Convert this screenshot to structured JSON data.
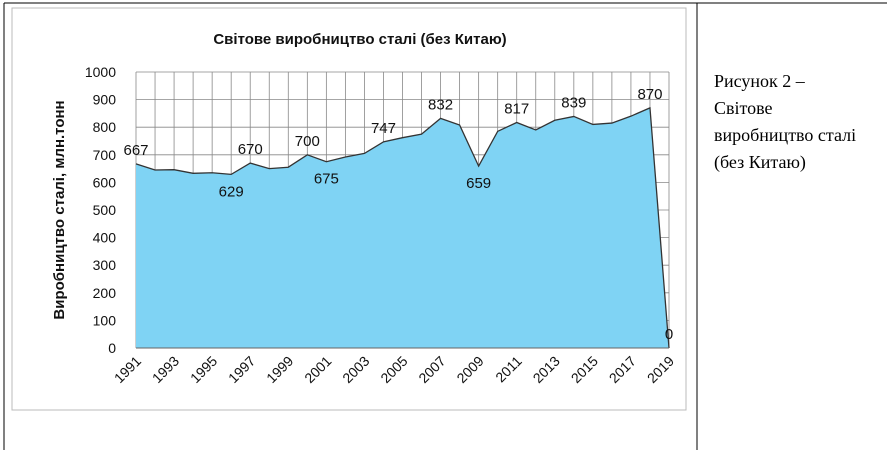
{
  "chart_data": {
    "type": "area",
    "title": "Світове виробництво сталі (без Китаю)",
    "y_label": "Виробництво сталі, млн.тонн",
    "categories": [
      "1991",
      null,
      "1993",
      null,
      "1995",
      null,
      "1997",
      null,
      "1999",
      null,
      "2001",
      null,
      "2003",
      null,
      "2005",
      null,
      "2007",
      null,
      "2009",
      null,
      "2011",
      null,
      "2013",
      null,
      "2015",
      null,
      "2017",
      null,
      "2019"
    ],
    "values": [
      667,
      645,
      646,
      633,
      635,
      629,
      670,
      650,
      655,
      700,
      675,
      692,
      705,
      747,
      762,
      775,
      832,
      808,
      659,
      785,
      817,
      790,
      825,
      839,
      810,
      815,
      840,
      870,
      0
    ],
    "value_labels": [
      "667",
      null,
      null,
      null,
      null,
      "629",
      "670",
      null,
      null,
      "700",
      "675",
      null,
      null,
      "747",
      null,
      null,
      "832",
      null,
      "659",
      null,
      "817",
      null,
      null,
      "839",
      null,
      null,
      null,
      "870",
      "0"
    ],
    "color": "#7fd3f4",
    "ylim": [
      0,
      1000
    ],
    "yticks": [
      0,
      100,
      200,
      300,
      400,
      500,
      600,
      700,
      800,
      900,
      1000
    ],
    "grid": true
  },
  "caption": "Рисунок 2 – Світове виробництво сталі (без Китаю)"
}
